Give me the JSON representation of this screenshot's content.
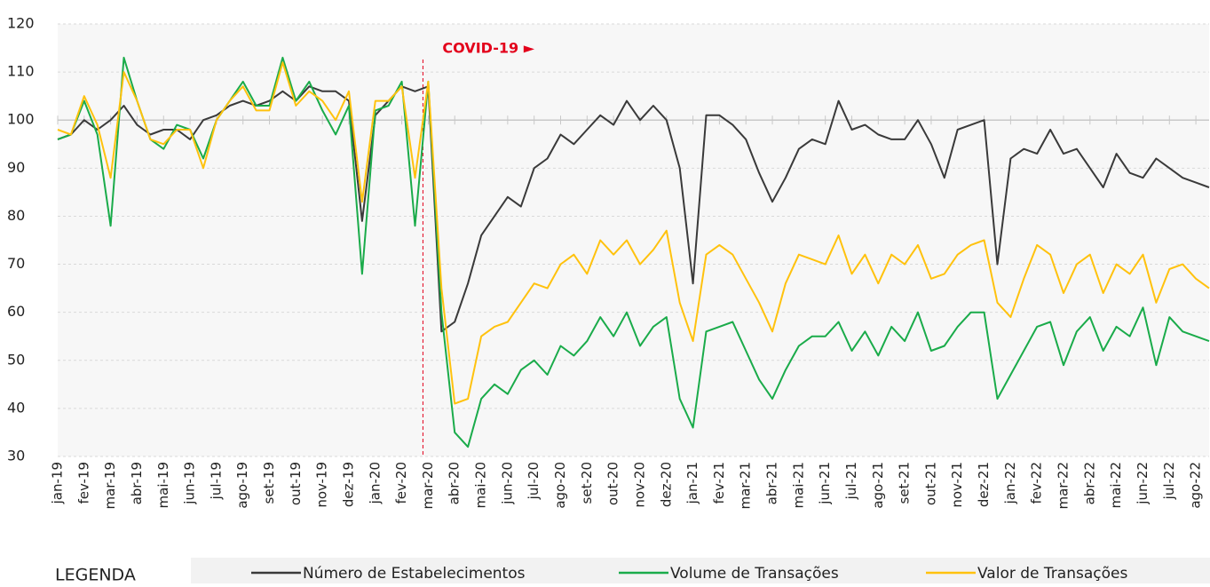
{
  "chart_data": {
    "type": "line",
    "categories": [
      "jan-19",
      null,
      "fev-19",
      null,
      "mar-19",
      null,
      "abr-19",
      null,
      "mai-19",
      null,
      "jun-19",
      null,
      "jul-19",
      null,
      "ago-19",
      null,
      "set-19",
      null,
      "out-19",
      null,
      "nov-19",
      null,
      "dez-19",
      null,
      "jan-20",
      null,
      "fev-20",
      null,
      "mar-20",
      null,
      "abr-20",
      null,
      "mai-20",
      null,
      "jun-20",
      null,
      "jul-20",
      null,
      "ago-20",
      null,
      "set-20",
      null,
      "out-20",
      null,
      "nov-20",
      null,
      "dez-20",
      null,
      "jan-21",
      null,
      "fev-21",
      null,
      "mar-21",
      null,
      "abr-21",
      null,
      "mai-21",
      null,
      "jun-21",
      null,
      "jul-21",
      null,
      "ago-21",
      null,
      "set-21",
      null,
      "out-21",
      null,
      "nov-21",
      null,
      "dez-21",
      null,
      "jan-22",
      null,
      "fev-22",
      null,
      "mar-22",
      null,
      "abr-22",
      null,
      "mai-22",
      null,
      "jun-22",
      null,
      "jul-22",
      null,
      "ago-22",
      null
    ],
    "series": [
      {
        "name": "Número de Estabelecimentos",
        "color": "#3a3a3a",
        "values": [
          96,
          97,
          100,
          98,
          100,
          103,
          99,
          97,
          98,
          98,
          96,
          100,
          101,
          103,
          104,
          103,
          104,
          106,
          104,
          107,
          106,
          106,
          104,
          79,
          101,
          104,
          107,
          106,
          107,
          56,
          58,
          66,
          76,
          80,
          84,
          82,
          90,
          92,
          97,
          95,
          98,
          101,
          99,
          104,
          100,
          103,
          100,
          90,
          66,
          101,
          101,
          99,
          96,
          89,
          83,
          88,
          94,
          96,
          95,
          104,
          98,
          99,
          97,
          96,
          96,
          100,
          95,
          88,
          98,
          99,
          100,
          70,
          92,
          94,
          93,
          98,
          93,
          94,
          90,
          86,
          93,
          89,
          88,
          92,
          90,
          88,
          87,
          86
        ]
      },
      {
        "name": "Volume de Transações",
        "color": "#1aab4a",
        "values": [
          96,
          97,
          104,
          97,
          78,
          113,
          104,
          96,
          94,
          99,
          98,
          92,
          100,
          104,
          108,
          103,
          103,
          113,
          104,
          108,
          102,
          97,
          103,
          68,
          102,
          103,
          108,
          78,
          108,
          60,
          35,
          32,
          42,
          45,
          43,
          48,
          50,
          47,
          53,
          51,
          54,
          59,
          55,
          60,
          53,
          57,
          59,
          42,
          36,
          56,
          57,
          58,
          52,
          46,
          42,
          48,
          53,
          55,
          55,
          58,
          52,
          56,
          51,
          57,
          54,
          60,
          52,
          53,
          57,
          60,
          60,
          42,
          47,
          52,
          57,
          58,
          49,
          56,
          59,
          52,
          57,
          55,
          61,
          49,
          59,
          56,
          55,
          54
        ]
      },
      {
        "name": "Valor de Transações",
        "color": "#ffc20e",
        "values": [
          98,
          97,
          105,
          99,
          88,
          110,
          104,
          96,
          95,
          98,
          98,
          90,
          100,
          104,
          107,
          102,
          102,
          112,
          103,
          106,
          104,
          100,
          106,
          83,
          104,
          104,
          107,
          88,
          108,
          65,
          41,
          42,
          55,
          57,
          58,
          62,
          66,
          65,
          70,
          72,
          68,
          75,
          72,
          75,
          70,
          73,
          77,
          62,
          54,
          72,
          74,
          72,
          67,
          62,
          56,
          66,
          72,
          71,
          70,
          76,
          68,
          72,
          66,
          72,
          70,
          74,
          67,
          68,
          72,
          74,
          75,
          62,
          59,
          67,
          74,
          72,
          64,
          70,
          72,
          64,
          70,
          68,
          72,
          62,
          69,
          70,
          67,
          65
        ]
      }
    ],
    "ylim": [
      30,
      120
    ],
    "yticks": [
      30,
      40,
      50,
      60,
      70,
      80,
      90,
      100,
      110,
      120
    ],
    "grid": true,
    "reference_line": 100,
    "annotation": {
      "text": "COVID-19 ►",
      "x": "mar-20",
      "color": "#e3001b"
    },
    "legend_title": "LEGENDA"
  }
}
